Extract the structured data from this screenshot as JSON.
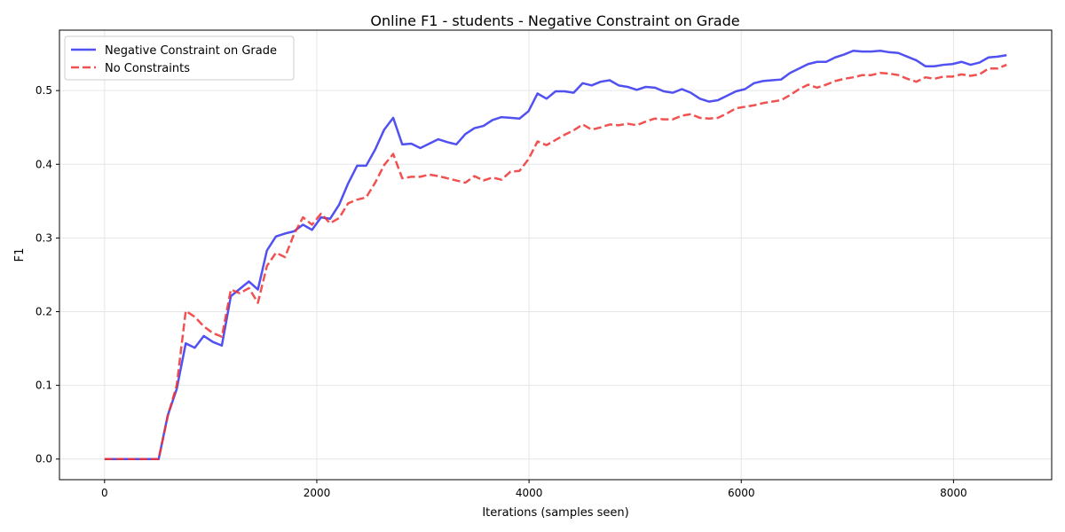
{
  "chart_data": {
    "type": "line",
    "title": "Online F1 - students - Negative Constraint on Grade",
    "xlabel": "Iterations (samples seen)",
    "ylabel": "F1",
    "xlim": [
      -425,
      8925
    ],
    "ylim": [
      -0.028,
      0.582
    ],
    "xticks": [
      0,
      2000,
      4000,
      6000,
      8000
    ],
    "xtick_labels": [
      "0",
      "2000",
      "4000",
      "6000",
      "8000"
    ],
    "yticks": [
      0.0,
      0.1,
      0.2,
      0.3,
      0.4,
      0.5
    ],
    "ytick_labels": [
      "0.0",
      "0.1",
      "0.2",
      "0.3",
      "0.4",
      "0.5"
    ],
    "grid": true,
    "legend_position": "upper-left",
    "x": [
      0,
      85,
      170,
      255,
      340,
      425,
      510,
      595,
      680,
      765,
      850,
      935,
      1020,
      1105,
      1190,
      1275,
      1360,
      1445,
      1530,
      1615,
      1700,
      1785,
      1870,
      1955,
      2040,
      2125,
      2210,
      2295,
      2380,
      2465,
      2550,
      2635,
      2720,
      2805,
      2890,
      2975,
      3060,
      3145,
      3230,
      3315,
      3400,
      3485,
      3570,
      3655,
      3740,
      3825,
      3910,
      3995,
      4080,
      4165,
      4250,
      4335,
      4420,
      4505,
      4590,
      4675,
      4760,
      4845,
      4930,
      5015,
      5100,
      5185,
      5270,
      5355,
      5440,
      5525,
      5610,
      5695,
      5780,
      5865,
      5950,
      6035,
      6120,
      6205,
      6290,
      6375,
      6460,
      6545,
      6630,
      6715,
      6800,
      6885,
      6970,
      7055,
      7140,
      7225,
      7310,
      7395,
      7480,
      7565,
      7650,
      7735,
      7820,
      7905,
      7990,
      8075,
      8160,
      8245,
      8330,
      8415,
      8500
    ],
    "series": [
      {
        "name": "Negative Constraint on Grade",
        "color": "#3333ee",
        "style": "solid",
        "values": [
          0.0,
          0.0,
          0.0,
          0.0,
          0.0,
          0.0,
          0.0,
          0.059,
          0.095,
          0.157,
          0.151,
          0.167,
          0.159,
          0.154,
          0.221,
          0.231,
          0.241,
          0.23,
          0.283,
          0.302,
          0.306,
          0.309,
          0.318,
          0.311,
          0.328,
          0.326,
          0.345,
          0.374,
          0.398,
          0.398,
          0.42,
          0.447,
          0.463,
          0.427,
          0.428,
          0.422,
          0.428,
          0.434,
          0.43,
          0.427,
          0.441,
          0.449,
          0.452,
          0.46,
          0.464,
          0.463,
          0.462,
          0.472,
          0.496,
          0.489,
          0.499,
          0.499,
          0.497,
          0.51,
          0.507,
          0.512,
          0.514,
          0.507,
          0.505,
          0.501,
          0.505,
          0.504,
          0.499,
          0.497,
          0.502,
          0.497,
          0.489,
          0.485,
          0.487,
          0.493,
          0.499,
          0.502,
          0.51,
          0.513,
          0.514,
          0.515,
          0.524,
          0.53,
          0.536,
          0.539,
          0.539,
          0.545,
          0.549,
          0.554,
          0.553,
          0.553,
          0.554,
          0.552,
          0.551,
          0.546,
          0.541,
          0.533,
          0.533,
          0.535,
          0.536,
          0.539,
          0.535,
          0.538,
          0.545,
          0.546,
          0.548
        ]
      },
      {
        "name": "No Constraints",
        "color": "#ee3333",
        "style": "dashed",
        "values": [
          0.0,
          0.0,
          0.0,
          0.0,
          0.0,
          0.0,
          0.0,
          0.058,
          0.1,
          0.201,
          0.193,
          0.18,
          0.171,
          0.166,
          0.23,
          0.225,
          0.232,
          0.212,
          0.262,
          0.28,
          0.274,
          0.305,
          0.328,
          0.318,
          0.333,
          0.32,
          0.327,
          0.347,
          0.352,
          0.355,
          0.375,
          0.399,
          0.414,
          0.381,
          0.383,
          0.383,
          0.386,
          0.384,
          0.381,
          0.378,
          0.375,
          0.384,
          0.378,
          0.382,
          0.379,
          0.39,
          0.391,
          0.407,
          0.431,
          0.426,
          0.433,
          0.44,
          0.446,
          0.454,
          0.447,
          0.45,
          0.454,
          0.453,
          0.455,
          0.453,
          0.458,
          0.462,
          0.461,
          0.461,
          0.466,
          0.468,
          0.463,
          0.462,
          0.463,
          0.469,
          0.476,
          0.478,
          0.48,
          0.483,
          0.485,
          0.487,
          0.494,
          0.502,
          0.508,
          0.504,
          0.508,
          0.513,
          0.516,
          0.518,
          0.521,
          0.521,
          0.524,
          0.523,
          0.521,
          0.516,
          0.512,
          0.518,
          0.516,
          0.519,
          0.519,
          0.522,
          0.52,
          0.522,
          0.53,
          0.53,
          0.535
        ]
      }
    ]
  }
}
